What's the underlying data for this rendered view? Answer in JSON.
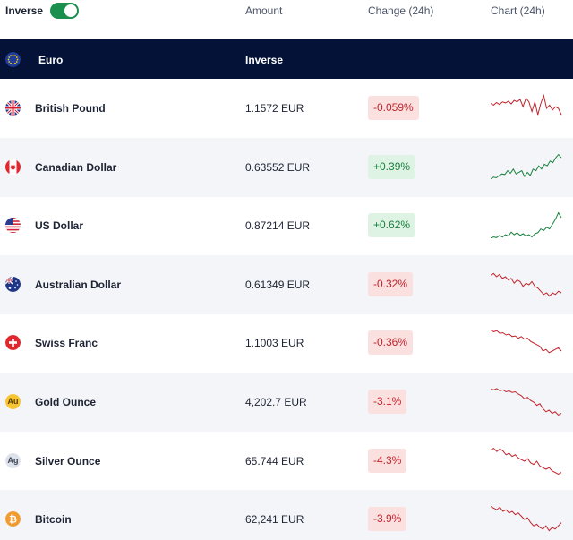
{
  "toolbar": {
    "toggle_label": "Inverse",
    "toggle_on": true
  },
  "columns": {
    "amount": "Amount",
    "change": "Change (24h)",
    "chart": "Chart (24h)"
  },
  "base": {
    "name": "Euro",
    "column_label": "Inverse",
    "icon": "eu-flag-icon"
  },
  "colors": {
    "header_bg": "#031236",
    "toggle_on": "#1a8f4e",
    "negative": "#c0232b",
    "positive": "#17803d"
  },
  "rows": [
    {
      "name": "British Pound",
      "amount": "1.1572 EUR",
      "change": "-0.059%",
      "direction": "neg",
      "icon": "uk-flag-icon",
      "spark": [
        0.35,
        0.4,
        0.32,
        0.38,
        0.3,
        0.33,
        0.28,
        0.36,
        0.25,
        0.3,
        0.22,
        0.45,
        0.18,
        0.3,
        0.6,
        0.3,
        0.7,
        0.35,
        0.1,
        0.5,
        0.4,
        0.55,
        0.45,
        0.5,
        0.7
      ]
    },
    {
      "name": "Canadian Dollar",
      "amount": "0.63552 EUR",
      "change": "+0.39%",
      "direction": "pos",
      "icon": "canada-flag-icon",
      "spark": [
        0.85,
        0.8,
        0.82,
        0.75,
        0.7,
        0.72,
        0.6,
        0.68,
        0.55,
        0.7,
        0.65,
        0.6,
        0.78,
        0.65,
        0.75,
        0.55,
        0.6,
        0.45,
        0.55,
        0.4,
        0.45,
        0.3,
        0.35,
        0.2,
        0.1,
        0.2
      ]
    },
    {
      "name": "US Dollar",
      "amount": "0.87214 EUR",
      "change": "+0.62%",
      "direction": "pos",
      "icon": "us-flag-icon",
      "spark": [
        0.88,
        0.85,
        0.87,
        0.8,
        0.85,
        0.78,
        0.82,
        0.7,
        0.78,
        0.72,
        0.8,
        0.75,
        0.82,
        0.78,
        0.85,
        0.75,
        0.72,
        0.6,
        0.65,
        0.55,
        0.6,
        0.45,
        0.3,
        0.1,
        0.25
      ]
    },
    {
      "name": "Australian Dollar",
      "amount": "0.61349 EUR",
      "change": "-0.32%",
      "direction": "neg",
      "icon": "australia-flag-icon",
      "spark": [
        0.2,
        0.15,
        0.25,
        0.18,
        0.3,
        0.25,
        0.35,
        0.3,
        0.45,
        0.35,
        0.4,
        0.55,
        0.45,
        0.5,
        0.4,
        0.55,
        0.6,
        0.7,
        0.8,
        0.75,
        0.85,
        0.75,
        0.8,
        0.7,
        0.75
      ]
    },
    {
      "name": "Swiss Franc",
      "amount": "1.1003 EUR",
      "change": "-0.36%",
      "direction": "neg",
      "icon": "switzerland-flag-icon",
      "spark": [
        0.1,
        0.15,
        0.12,
        0.2,
        0.18,
        0.25,
        0.22,
        0.3,
        0.28,
        0.35,
        0.3,
        0.38,
        0.35,
        0.45,
        0.5,
        0.55,
        0.6,
        0.75,
        0.7,
        0.8,
        0.75,
        0.7,
        0.65,
        0.75
      ]
    },
    {
      "name": "Gold Ounce",
      "amount": "4,202.7 EUR",
      "change": "-3.1%",
      "direction": "neg",
      "icon": "gold-coin-icon",
      "code": "Au",
      "spark": [
        0.1,
        0.12,
        0.08,
        0.15,
        0.12,
        0.18,
        0.15,
        0.2,
        0.18,
        0.25,
        0.3,
        0.4,
        0.35,
        0.45,
        0.5,
        0.6,
        0.55,
        0.7,
        0.8,
        0.75,
        0.85,
        0.8,
        0.9,
        0.85
      ]
    },
    {
      "name": "Silver Ounce",
      "amount": "65.744 EUR",
      "change": "-4.3%",
      "direction": "neg",
      "icon": "silver-coin-icon",
      "code": "Ag",
      "spark": [
        0.15,
        0.1,
        0.2,
        0.12,
        0.18,
        0.3,
        0.25,
        0.35,
        0.3,
        0.4,
        0.45,
        0.5,
        0.42,
        0.55,
        0.6,
        0.5,
        0.65,
        0.7,
        0.75,
        0.7,
        0.8,
        0.85,
        0.9,
        0.85
      ]
    },
    {
      "name": "Bitcoin",
      "amount": "62,241 EUR",
      "change": "-3.9%",
      "direction": "neg",
      "icon": "bitcoin-icon",
      "spark": [
        0.1,
        0.15,
        0.2,
        0.12,
        0.25,
        0.2,
        0.3,
        0.25,
        0.35,
        0.3,
        0.4,
        0.5,
        0.45,
        0.6,
        0.7,
        0.65,
        0.75,
        0.8,
        0.7,
        0.85,
        0.75,
        0.8,
        0.7,
        0.6
      ]
    }
  ]
}
